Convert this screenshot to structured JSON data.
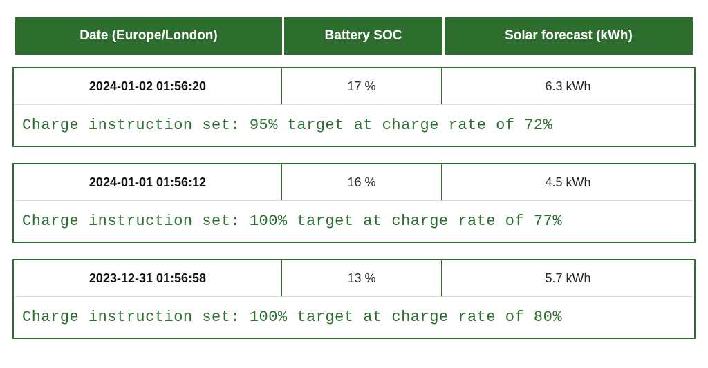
{
  "header": {
    "columns": [
      "Date (Europe/London)",
      "Battery SOC",
      "Solar forecast (kWh)"
    ]
  },
  "rows": [
    {
      "date": "2024-01-02 01:56:20",
      "soc": "17 %",
      "solar": "6.3 kWh",
      "instruction": "Charge instruction set: 95% target at charge rate of 72%"
    },
    {
      "date": "2024-01-01 01:56:12",
      "soc": "16 %",
      "solar": "4.5 kWh",
      "instruction": "Charge instruction set: 100% target at charge rate of 77%"
    },
    {
      "date": "2023-12-31 01:56:58",
      "soc": "13 %",
      "solar": "5.7 kWh",
      "instruction": "Charge instruction set: 100% target at charge rate of 80%"
    }
  ],
  "colors": {
    "green": "#2d6e2f",
    "instruction_green": "#2e7031",
    "hairline": "#dcdcdc",
    "header_text": "#ffffff",
    "date_text": "#111111",
    "value_text": "#262626"
  }
}
